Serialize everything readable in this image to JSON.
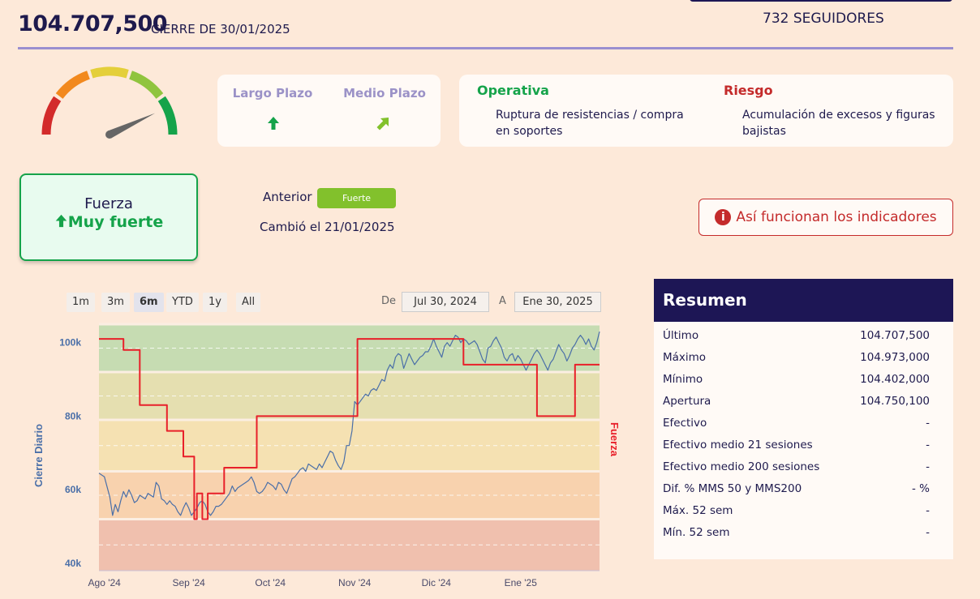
{
  "header": {
    "price": "104.707,500",
    "close_date": "CIERRE DE 30/01/2025",
    "followers": "732 SEGUIDORES"
  },
  "gauge": {
    "needle_level": 0.86,
    "segment_colors": [
      "#d32b2b",
      "#f2891e",
      "#e4cf3a",
      "#90c43e",
      "#15a34a"
    ]
  },
  "trends": {
    "long_term": {
      "label": "Largo Plazo",
      "icon": "arrow-up-icon",
      "color": "#15a34a"
    },
    "medium_term": {
      "label": "Medio Plazo",
      "icon": "arrow-up-right-icon",
      "color": "#82c12c"
    }
  },
  "operativa": {
    "title": "Operativa",
    "text": "Ruptura de resistencias / compra en soportes",
    "color": "#15a34a"
  },
  "riesgo": {
    "title": "Riesgo",
    "text": "Acumulación de excesos y figuras bajistas",
    "color": "#c42b2b"
  },
  "strength": {
    "label": "Fuerza",
    "value": "Muy fuerte",
    "icon": "arrow-up-icon"
  },
  "previous": {
    "label": "Anterior",
    "badge": "Fuerte",
    "changed": "Cambió el 21/01/2025"
  },
  "info_button": {
    "label": "Así funcionan los indicadores",
    "icon": "info-icon"
  },
  "range_selector": {
    "buttons": [
      "1m",
      "3m",
      "6m",
      "YTD",
      "1y",
      "All"
    ],
    "active": "6m",
    "from_label": "De",
    "from": "Jul 30, 2024",
    "to_label": "A",
    "to": "Ene 30, 2025"
  },
  "chart_data": {
    "type": "line",
    "ylabel": "Cierre Diario",
    "y2label": "Fuerza",
    "ylim": [
      38000,
      105000
    ],
    "yticks": [
      "100k",
      "80k",
      "60k",
      "40k"
    ],
    "ytick_values": [
      100000,
      80000,
      60000,
      40000
    ],
    "xticks": [
      "Ago '24",
      "Sep '24",
      "Oct '24",
      "Nov '24",
      "Dic '24",
      "Ene '25"
    ],
    "xtick_days": [
      2,
      33,
      63,
      94,
      124,
      155
    ],
    "x_range_days": [
      0,
      184
    ],
    "bands": [
      {
        "from": 92000,
        "to": 105000,
        "color": "#c6dcb2"
      },
      {
        "from": 79000,
        "to": 92000,
        "color": "#e5dfb0"
      },
      {
        "from": 65000,
        "to": 79000,
        "color": "#f5e1b2"
      },
      {
        "from": 52000,
        "to": 65000,
        "color": "#f8d2ae"
      },
      {
        "from": 38000,
        "to": 52000,
        "color": "#f0c0ae"
      }
    ],
    "series": [
      {
        "color": "#4a6fa8",
        "points": [
          [
            0,
            64500
          ],
          [
            2,
            63500
          ],
          [
            4,
            58000
          ],
          [
            5,
            53000
          ],
          [
            6,
            56000
          ],
          [
            7,
            54000
          ],
          [
            8,
            57000
          ],
          [
            9,
            59500
          ],
          [
            10,
            58000
          ],
          [
            11,
            60000
          ],
          [
            12,
            58500
          ],
          [
            13,
            56500
          ],
          [
            14,
            57000
          ],
          [
            15,
            58500
          ],
          [
            16,
            58000
          ],
          [
            17,
            57500
          ],
          [
            18,
            59000
          ],
          [
            20,
            58000
          ],
          [
            21,
            62000
          ],
          [
            22,
            61000
          ],
          [
            23,
            57500
          ],
          [
            24,
            57000
          ],
          [
            25,
            56000
          ],
          [
            26,
            57000
          ],
          [
            27,
            56000
          ],
          [
            28,
            55500
          ],
          [
            29,
            54000
          ],
          [
            30,
            53000
          ],
          [
            31,
            55000
          ],
          [
            32,
            56500
          ],
          [
            33,
            55000
          ],
          [
            34,
            53000
          ],
          [
            35,
            54000
          ],
          [
            36,
            55000
          ],
          [
            37,
            56500
          ],
          [
            38,
            57000
          ],
          [
            39,
            56000
          ],
          [
            40,
            54000
          ],
          [
            41,
            53000
          ],
          [
            42,
            54000
          ],
          [
            43,
            55500
          ],
          [
            44,
            55500
          ],
          [
            45,
            56000
          ],
          [
            46,
            57000
          ],
          [
            47,
            58000
          ],
          [
            48,
            59000
          ],
          [
            49,
            61000
          ],
          [
            50,
            59500
          ],
          [
            51,
            60500
          ],
          [
            52,
            61000
          ],
          [
            53,
            61500
          ],
          [
            54,
            62000
          ],
          [
            55,
            62500
          ],
          [
            56,
            63500
          ],
          [
            57,
            62000
          ],
          [
            58,
            59500
          ],
          [
            59,
            59000
          ],
          [
            60,
            59500
          ],
          [
            61,
            60500
          ],
          [
            62,
            62000
          ],
          [
            63,
            61500
          ],
          [
            64,
            61000
          ],
          [
            65,
            60000
          ],
          [
            66,
            62000
          ],
          [
            67,
            61500
          ],
          [
            68,
            60000
          ],
          [
            69,
            59000
          ],
          [
            71,
            63000
          ],
          [
            72,
            63500
          ],
          [
            73,
            64500
          ],
          [
            74,
            65500
          ],
          [
            75,
            66000
          ],
          [
            76,
            65000
          ],
          [
            77,
            67000
          ],
          [
            78,
            66500
          ],
          [
            79,
            66000
          ],
          [
            80,
            65500
          ],
          [
            81,
            67000
          ],
          [
            82,
            66000
          ],
          [
            83,
            67500
          ],
          [
            84,
            69000
          ],
          [
            85,
            70500
          ],
          [
            86,
            70000
          ],
          [
            87,
            68000
          ],
          [
            88,
            66500
          ],
          [
            89,
            65500
          ],
          [
            90,
            67500
          ],
          [
            91,
            72000
          ],
          [
            92,
            72000
          ],
          [
            93,
            76000
          ],
          [
            94,
            84000
          ],
          [
            95,
            83000
          ],
          [
            96,
            84000
          ],
          [
            97,
            85000
          ],
          [
            98,
            86000
          ],
          [
            99,
            85500
          ],
          [
            100,
            87000
          ],
          [
            101,
            87500
          ],
          [
            102,
            87000
          ],
          [
            103,
            88500
          ],
          [
            104,
            90000
          ],
          [
            105,
            89500
          ],
          [
            106,
            92500
          ],
          [
            107,
            94000
          ],
          [
            108,
            93000
          ],
          [
            109,
            96000
          ],
          [
            110,
            97000
          ],
          [
            111,
            96500
          ],
          [
            112,
            93000
          ],
          [
            113,
            95000
          ],
          [
            114,
            97000
          ],
          [
            115,
            95500
          ],
          [
            116,
            94000
          ],
          [
            117,
            95000
          ],
          [
            118,
            96000
          ],
          [
            119,
            96500
          ],
          [
            120,
            97500
          ],
          [
            121,
            97500
          ],
          [
            122,
            99000
          ],
          [
            123,
            101000
          ],
          [
            124,
            99000
          ],
          [
            125,
            97500
          ],
          [
            126,
            96000
          ],
          [
            127,
            99000
          ],
          [
            128,
            100000
          ],
          [
            129,
            99000
          ],
          [
            130,
            100500
          ],
          [
            131,
            102000
          ],
          [
            132,
            101500
          ],
          [
            133,
            100000
          ],
          [
            134,
            101000
          ],
          [
            135,
            100500
          ],
          [
            136,
            99500
          ],
          [
            137,
            100000
          ],
          [
            138,
            100500
          ],
          [
            139,
            99500
          ],
          [
            140,
            97500
          ],
          [
            141,
            95500
          ],
          [
            142,
            94500
          ],
          [
            143,
            98500
          ],
          [
            144,
            99000
          ],
          [
            145,
            100500
          ],
          [
            146,
            101500
          ],
          [
            147,
            100000
          ],
          [
            148,
            98500
          ],
          [
            149,
            96000
          ],
          [
            150,
            95000
          ],
          [
            151,
            96500
          ],
          [
            152,
            97000
          ],
          [
            153,
            95000
          ],
          [
            154,
            96500
          ],
          [
            155,
            95500
          ],
          [
            156,
            94000
          ],
          [
            157,
            92500
          ],
          [
            158,
            94000
          ],
          [
            159,
            95500
          ],
          [
            160,
            97000
          ],
          [
            161,
            98000
          ],
          [
            162,
            97000
          ],
          [
            163,
            95500
          ],
          [
            164,
            94000
          ],
          [
            165,
            92500
          ],
          [
            166,
            94500
          ],
          [
            167,
            95500
          ],
          [
            168,
            97500
          ],
          [
            169,
            99500
          ],
          [
            170,
            98000
          ],
          [
            171,
            97000
          ],
          [
            172,
            95000
          ],
          [
            173,
            96500
          ],
          [
            174,
            98500
          ],
          [
            175,
            99500
          ],
          [
            176,
            101000
          ],
          [
            177,
            102000
          ],
          [
            178,
            101000
          ],
          [
            179,
            99500
          ],
          [
            180,
            101000
          ],
          [
            181,
            99000
          ],
          [
            182,
            98000
          ],
          [
            183,
            100000
          ],
          [
            184,
            103000
          ]
        ]
      },
      {
        "color": "#e8202a",
        "points": [
          [
            0,
            101000
          ],
          [
            9,
            101000
          ],
          [
            9,
            98000
          ],
          [
            15,
            98000
          ],
          [
            15,
            83000
          ],
          [
            25,
            83000
          ],
          [
            25,
            76000
          ],
          [
            31,
            76000
          ],
          [
            31,
            69000
          ],
          [
            35,
            69000
          ],
          [
            35,
            52000
          ],
          [
            36,
            52000
          ],
          [
            36,
            59000
          ],
          [
            38,
            59000
          ],
          [
            38,
            52000
          ],
          [
            40,
            52000
          ],
          [
            40,
            59000
          ],
          [
            46,
            59000
          ],
          [
            46,
            66000
          ],
          [
            58,
            66000
          ],
          [
            58,
            80000
          ],
          [
            95,
            80000
          ],
          [
            95,
            101000
          ],
          [
            134,
            101000
          ],
          [
            134,
            94000
          ],
          [
            161,
            94000
          ],
          [
            161,
            80000
          ],
          [
            175,
            80000
          ],
          [
            175,
            94000
          ],
          [
            184,
            94000
          ]
        ]
      }
    ]
  },
  "summary": {
    "title": "Resumen",
    "rows": [
      {
        "label": "Último",
        "value": "104.707,500"
      },
      {
        "label": "Máximo",
        "value": "104.973,000"
      },
      {
        "label": "Mínimo",
        "value": "104.402,000"
      },
      {
        "label": "Apertura",
        "value": "104.750,100"
      },
      {
        "label": "Efectivo",
        "value": "-"
      },
      {
        "label": "Efectivo medio 21 sesiones",
        "value": "-"
      },
      {
        "label": "Efectivo medio 200 sesiones",
        "value": "-"
      },
      {
        "label": "Dif. % MMS 50 y MMS200",
        "value": "- %"
      },
      {
        "label": "Máx. 52 sem",
        "value": "-"
      },
      {
        "label": "Mín. 52 sem",
        "value": "-"
      }
    ]
  }
}
